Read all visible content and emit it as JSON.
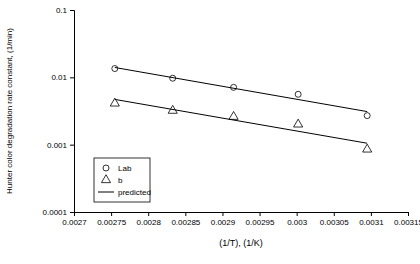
{
  "chart_data": {
    "type": "scatter",
    "x_label": "(1/T), (1/K)",
    "y_label": "Hunter color degradation rate constant, (1/min)",
    "log": "y",
    "legend": "lower left",
    "grid": false,
    "xlim": [
      0.0027,
      0.00315
    ],
    "xticks": [
      0.0027,
      0.00275,
      0.0028,
      0.00285,
      0.0029,
      0.00295,
      0.003,
      0.00305,
      0.0031,
      0.00315
    ],
    "ylim": [
      0.0001,
      0.1
    ],
    "yticks": [
      0.0001,
      0.001,
      0.01,
      0.1
    ],
    "series": [
      {
        "name": "Lab",
        "type": "scatter",
        "marker": "circle",
        "color": "#000000",
        "x": [
          0.002755,
          0.002833,
          0.002915,
          0.003002,
          0.003095
        ],
        "values": [
          0.0135,
          0.0097,
          0.0071,
          0.0056,
          0.0027
        ]
      },
      {
        "name": "b",
        "type": "scatter",
        "marker": "triangle",
        "color": "#000000",
        "x": [
          0.002755,
          0.002833,
          0.002915,
          0.003002,
          0.003095
        ],
        "values": [
          0.0041,
          0.0032,
          0.0026,
          0.002,
          0.00085
        ]
      },
      {
        "name": "predicted",
        "type": "line",
        "line_style": "solid",
        "color": "#000000",
        "x": [
          0.002755,
          0.003095,
          null,
          0.002755,
          0.003095
        ],
        "values": [
          0.014,
          0.0031,
          null,
          0.0047,
          0.00105
        ]
      }
    ]
  }
}
